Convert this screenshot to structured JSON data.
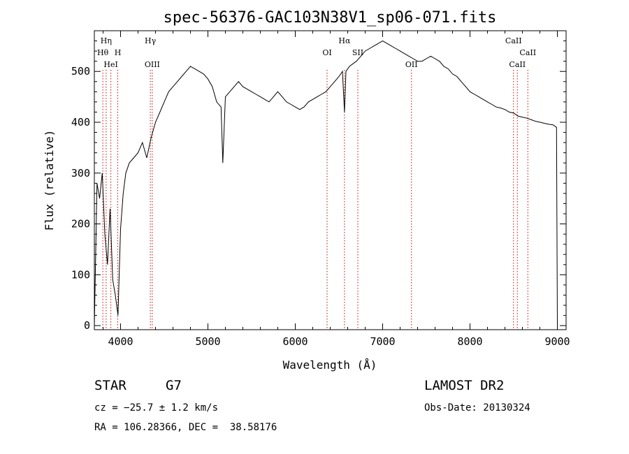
{
  "chart_data": {
    "type": "line",
    "title": "spec-56376-GAC103N38V1_sp06-071.fits",
    "xlabel": "Wavelength (Å)",
    "ylabel": "Flux (relative)",
    "xlim": [
      3700,
      9100
    ],
    "ylim": [
      -8,
      580
    ],
    "xticks": [
      4000,
      5000,
      6000,
      7000,
      8000,
      9000
    ],
    "yticks": [
      0,
      100,
      200,
      300,
      400,
      500
    ],
    "grid": false,
    "series": [
      {
        "x": [
          3700,
          3730,
          3760,
          3790,
          3820,
          3850,
          3880,
          3910,
          3940,
          3970,
          4000,
          4030,
          4060,
          4100,
          4150,
          4200,
          4250,
          4300,
          4350,
          4400,
          4450,
          4500,
          4550,
          4600,
          4650,
          4700,
          4750,
          4800,
          4850,
          4900,
          4950,
          5000,
          5050,
          5100,
          5150,
          5170,
          5200,
          5250,
          5300,
          5350,
          5400,
          5450,
          5500,
          5550,
          5600,
          5650,
          5700,
          5750,
          5800,
          5850,
          5900,
          5950,
          6000,
          6050,
          6100,
          6150,
          6200,
          6250,
          6300,
          6350,
          6400,
          6450,
          6500,
          6540,
          6563,
          6580,
          6620,
          6660,
          6700,
          6750,
          6800,
          6850,
          6900,
          6950,
          7000,
          7050,
          7100,
          7150,
          7200,
          7250,
          7300,
          7350,
          7400,
          7450,
          7500,
          7550,
          7600,
          7650,
          7700,
          7750,
          7800,
          7850,
          7900,
          7950,
          8000,
          8050,
          8100,
          8150,
          8200,
          8250,
          8300,
          8350,
          8400,
          8450,
          8500,
          8550,
          8600,
          8650,
          8700,
          8750,
          8800,
          8850,
          8900,
          8950,
          8990,
          9000
        ],
        "y": [
          0,
          280,
          250,
          300,
          180,
          120,
          230,
          90,
          60,
          20,
          190,
          260,
          300,
          320,
          330,
          340,
          360,
          330,
          370,
          400,
          420,
          440,
          460,
          470,
          480,
          490,
          500,
          510,
          505,
          500,
          495,
          485,
          470,
          440,
          430,
          320,
          450,
          460,
          470,
          480,
          470,
          465,
          460,
          455,
          450,
          445,
          440,
          450,
          460,
          450,
          440,
          435,
          430,
          425,
          430,
          440,
          445,
          450,
          455,
          460,
          470,
          480,
          490,
          500,
          420,
          500,
          510,
          515,
          520,
          530,
          540,
          545,
          550,
          555,
          560,
          555,
          550,
          545,
          540,
          535,
          530,
          525,
          520,
          520,
          525,
          530,
          525,
          520,
          510,
          505,
          495,
          490,
          480,
          470,
          460,
          455,
          450,
          445,
          440,
          435,
          430,
          428,
          425,
          420,
          418,
          412,
          410,
          408,
          405,
          402,
          400,
          398,
          396,
          395,
          390,
          0
        ]
      }
    ],
    "spectral_lines": [
      {
        "label": "Hη",
        "wl": 3835,
        "row": 0
      },
      {
        "label": "Hθ",
        "wl": 3797,
        "row": 1
      },
      {
        "label": "H",
        "wl": 3968,
        "row": 1
      },
      {
        "label": "HeI",
        "wl": 3889,
        "row": 2
      },
      {
        "label": "Hγ",
        "wl": 4341,
        "row": 0
      },
      {
        "label": "OIII",
        "wl": 4363,
        "row": 2
      },
      {
        "label": "OI",
        "wl": 6364,
        "row": 1
      },
      {
        "label": "Hα",
        "wl": 6563,
        "row": 0
      },
      {
        "label": "SII",
        "wl": 6716,
        "row": 1
      },
      {
        "label": "OII",
        "wl": 7330,
        "row": 2
      },
      {
        "label": "CaII",
        "wl": 8498,
        "row": 0
      },
      {
        "label": "CaII",
        "wl": 8662,
        "row": 1
      },
      {
        "label": "CaII",
        "wl": 8542,
        "row": 2
      }
    ]
  },
  "info": {
    "class": "STAR",
    "subclass": "G7",
    "survey": "LAMOST DR2",
    "cz": "cz = −25.7 ± 1.2 km/s",
    "obs_date": "Obs-Date: 20130324",
    "coords": "RA = 106.28366, DEC =  38.58176"
  }
}
